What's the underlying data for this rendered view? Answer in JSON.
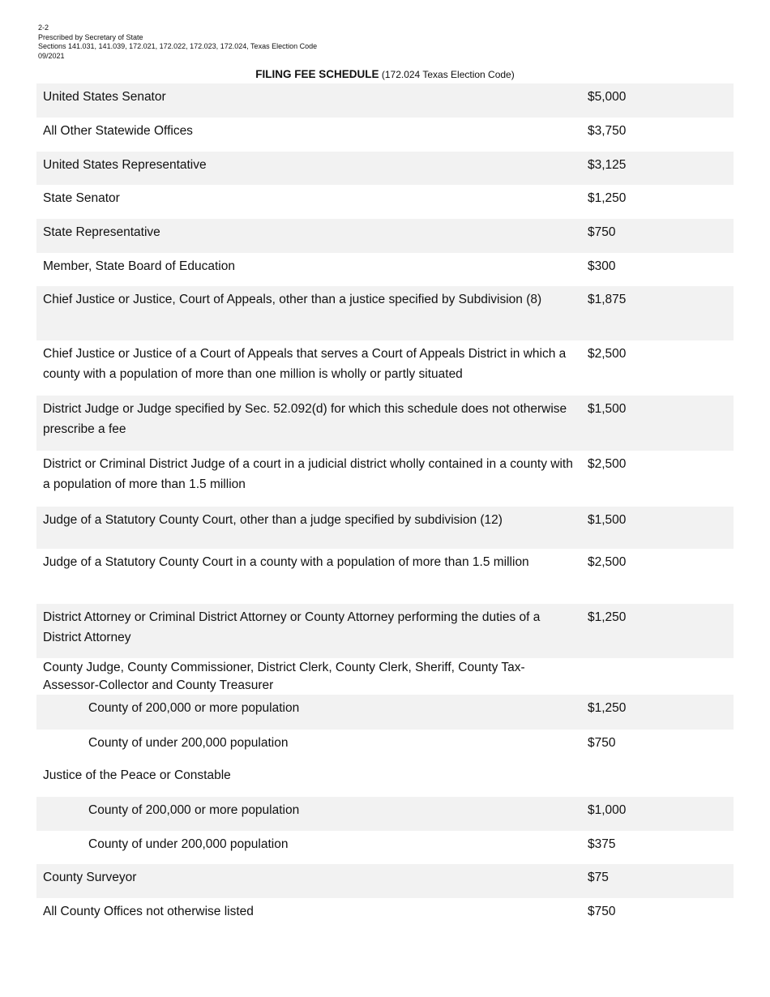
{
  "header": {
    "form_number": "2-2",
    "prescribed_by": "Prescribed by Secretary of State",
    "sections": "Sections 141.031, 141.039, 172.021, 172.022, 172.023, 172.024, Texas Election Code",
    "date": "09/2021"
  },
  "title": {
    "main": "FILING FEE SCHEDULE",
    "sub": " (172.024 Texas Election Code)"
  },
  "colors": {
    "row_shade": "#f2f2f2"
  },
  "rows": [
    {
      "label": "United States Senator",
      "fee": "$5,000",
      "shaded": true
    },
    {
      "label": "All Other Statewide Offices",
      "fee": "$3,750",
      "shaded": false
    },
    {
      "label": "United States Representative",
      "fee": "$3,125",
      "shaded": true
    },
    {
      "label": "State Senator",
      "fee": "$1,250",
      "shaded": false
    },
    {
      "label": "State Representative",
      "fee": "$750",
      "shaded": true
    },
    {
      "label": "Member, State Board of Education",
      "fee": "$300",
      "shaded": false
    },
    {
      "label": "Chief Justice or Justice, Court of Appeals, other than a justice specified by Subdivision (8)",
      "fee": "$1,875",
      "shaded": true
    },
    {
      "label": "Chief Justice or Justice of a Court of Appeals that serves a Court of Appeals District in which a county with a population of more than one million is wholly or partly situated",
      "fee": "$2,500",
      "shaded": false
    },
    {
      "label": "District Judge or Judge specified by Sec. 52.092(d) for which this schedule does not otherwise prescribe a fee",
      "fee": "$1,500",
      "shaded": true
    },
    {
      "label": "District or Criminal District Judge of a court in a judicial district wholly contained in a county with a population of more than 1.5 million",
      "fee": "$2,500",
      "shaded": false
    },
    {
      "label": "Judge of a Statutory County Court, other than a judge specified by subdivision (12)",
      "fee": "$1,500",
      "shaded": true
    },
    {
      "label": "Judge of a Statutory County Court in a county with a population of more than 1.5 million",
      "fee": "$2,500",
      "shaded": false
    },
    {
      "label": "District Attorney or Criminal District Attorney or County Attorney performing the duties of a District Attorney",
      "fee": "$1,250",
      "shaded": true
    },
    {
      "label": "County Judge, County Commissioner, District Clerk, County Clerk, Sheriff, County Tax-Assessor-Collector and County Treasurer",
      "fee": "",
      "shaded": false
    },
    {
      "label": "County of 200,000 or more population",
      "fee": "$1,250",
      "shaded": true,
      "indent": true
    },
    {
      "label": "County of under 200,000 population",
      "fee": "$750",
      "shaded": false,
      "indent": true
    },
    {
      "label": "Justice of the Peace or Constable",
      "fee": "",
      "shaded": false
    },
    {
      "label": "County of 200,000 or more population",
      "fee": "$1,000",
      "shaded": true,
      "indent": true
    },
    {
      "label": "County of under 200,000 population",
      "fee": "$375",
      "shaded": false,
      "indent": true
    },
    {
      "label": "County Surveyor",
      "fee": "$75",
      "shaded": true
    },
    {
      "label": "All County Offices not otherwise listed",
      "fee": "$750",
      "shaded": false
    }
  ]
}
